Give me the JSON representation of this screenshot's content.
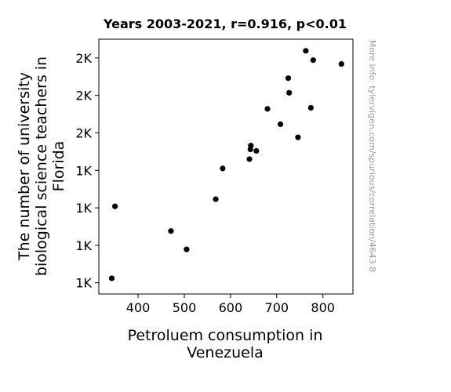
{
  "chart_data": {
    "type": "scatter",
    "title": "Years 2003-2021, r=0.916, p<0.01",
    "xlabel_lines": [
      "Petroluem consumption in",
      "Venezuela"
    ],
    "ylabel_lines": [
      "The number of university",
      "biological science teachers in",
      "Florida"
    ],
    "watermark": "More info: tylervigen.com/spurious/correlation/4643 8",
    "xlim": [
      315,
      865
    ],
    "ylim": [
      1070,
      1750
    ],
    "x_ticks": [
      {
        "value": 400,
        "label": "400"
      },
      {
        "value": 500,
        "label": "500"
      },
      {
        "value": 600,
        "label": "600"
      },
      {
        "value": 700,
        "label": "700"
      },
      {
        "value": 800,
        "label": "800"
      }
    ],
    "y_ticks": [
      {
        "value": 1100,
        "label": "1K"
      },
      {
        "value": 1200,
        "label": "1K"
      },
      {
        "value": 1300,
        "label": "1K"
      },
      {
        "value": 1400,
        "label": "1K"
      },
      {
        "value": 1500,
        "label": "2K"
      },
      {
        "value": 1600,
        "label": "2K"
      },
      {
        "value": 1700,
        "label": "2K"
      },
      {
        "value": 1800,
        "label": "2K"
      }
    ],
    "point_color": "#000000",
    "points": [
      {
        "x": 343,
        "y": 1112
      },
      {
        "x": 350,
        "y": 1304
      },
      {
        "x": 471,
        "y": 1238
      },
      {
        "x": 505,
        "y": 1189
      },
      {
        "x": 568,
        "y": 1323
      },
      {
        "x": 583,
        "y": 1405
      },
      {
        "x": 641,
        "y": 1430
      },
      {
        "x": 643,
        "y": 1456
      },
      {
        "x": 644,
        "y": 1466
      },
      {
        "x": 656,
        "y": 1452
      },
      {
        "x": 680,
        "y": 1564
      },
      {
        "x": 708,
        "y": 1523
      },
      {
        "x": 725,
        "y": 1646
      },
      {
        "x": 727,
        "y": 1607
      },
      {
        "x": 746,
        "y": 1488
      },
      {
        "x": 763,
        "y": 1719
      },
      {
        "x": 774,
        "y": 1567
      },
      {
        "x": 779,
        "y": 1694
      },
      {
        "x": 840,
        "y": 1684
      }
    ]
  }
}
